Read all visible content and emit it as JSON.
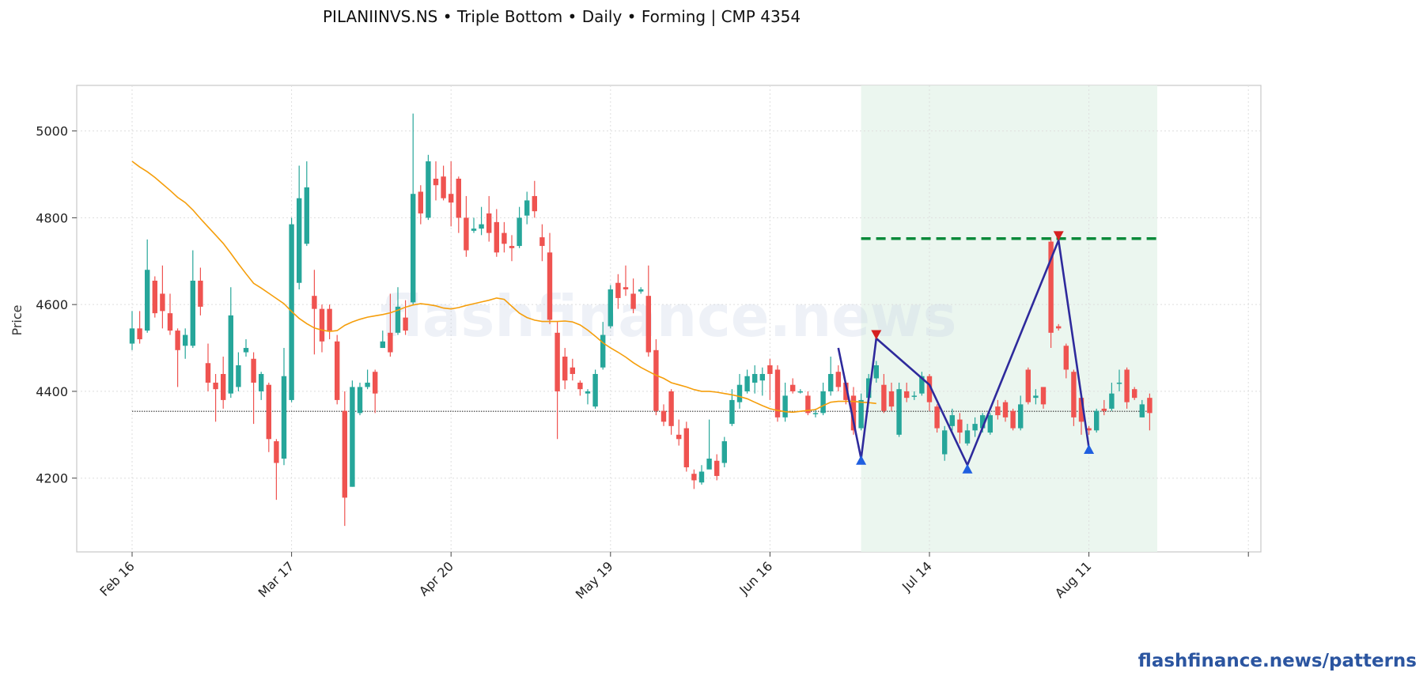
{
  "title": "PILANIINVS.NS  •  Triple Bottom  •  Daily  •  Forming  |  CMP 4354",
  "watermark": "flashfinance.news",
  "footer_link": "flashfinance.news/patterns",
  "colors": {
    "up": "#26a69a",
    "down": "#ef5350",
    "ma": "#f59e0b",
    "pattern": "#2e2a9c",
    "target": "#0a8a3a",
    "zone": "#e8f4ec",
    "trough_marker": "#1f5fe0",
    "peak_marker": "#d62020"
  },
  "chart_data": {
    "type": "candlestick",
    "ylabel": "Price",
    "ylim": [
      4030,
      5105
    ],
    "yticks": [
      4200,
      4400,
      4600,
      4800,
      5000
    ],
    "xticks": [
      {
        "label": "Feb 16",
        "index": 0
      },
      {
        "label": "Mar 17",
        "index": 21
      },
      {
        "label": "Apr 20",
        "index": 42
      },
      {
        "label": "May 19",
        "index": 63
      },
      {
        "label": "Jun 16",
        "index": 84
      },
      {
        "label": "Jul 14",
        "index": 105
      },
      {
        "label": "Aug 11",
        "index": 126
      },
      {
        "label": "",
        "index": 147
      }
    ],
    "candles": [
      [
        4510,
        4545,
        4495,
        4585
      ],
      [
        4545,
        4520,
        4510,
        4585
      ],
      [
        4540,
        4680,
        4535,
        4750
      ],
      [
        4655,
        4580,
        4570,
        4665
      ],
      [
        4625,
        4585,
        4545,
        4690
      ],
      [
        4580,
        4540,
        4530,
        4625
      ],
      [
        4540,
        4495,
        4410,
        4545
      ],
      [
        4505,
        4530,
        4475,
        4545
      ],
      [
        4505,
        4655,
        4500,
        4725
      ],
      [
        4655,
        4595,
        4575,
        4685
      ],
      [
        4465,
        4420,
        4400,
        4510
      ],
      [
        4420,
        4405,
        4330,
        4440
      ],
      [
        4440,
        4380,
        4360,
        4480
      ],
      [
        4395,
        4575,
        4385,
        4640
      ],
      [
        4410,
        4460,
        4400,
        4490
      ],
      [
        4490,
        4500,
        4480,
        4520
      ],
      [
        4475,
        4420,
        4325,
        4490
      ],
      [
        4400,
        4440,
        4380,
        4445
      ],
      [
        4415,
        4290,
        4260,
        4420
      ],
      [
        4285,
        4235,
        4150,
        4290
      ],
      [
        4245,
        4435,
        4230,
        4500
      ],
      [
        4380,
        4785,
        4375,
        4800
      ],
      [
        4650,
        4845,
        4635,
        4920
      ],
      [
        4740,
        4870,
        4735,
        4930
      ],
      [
        4620,
        4590,
        4485,
        4680
      ],
      [
        4590,
        4515,
        4490,
        4600
      ],
      [
        4590,
        4540,
        4520,
        4600
      ],
      [
        4515,
        4380,
        4370,
        4530
      ],
      [
        4355,
        4155,
        4090,
        4400
      ],
      [
        4180,
        4410,
        4180,
        4425
      ],
      [
        4350,
        4410,
        4345,
        4420
      ],
      [
        4410,
        4420,
        4405,
        4450
      ],
      [
        4445,
        4395,
        4350,
        4450
      ],
      [
        4500,
        4515,
        4500,
        4540
      ],
      [
        4535,
        4490,
        4480,
        4625
      ],
      [
        4535,
        4595,
        4530,
        4640
      ],
      [
        4570,
        4540,
        4530,
        4610
      ],
      [
        4605,
        4855,
        4600,
        5040
      ],
      [
        4860,
        4810,
        4785,
        4875
      ],
      [
        4800,
        4930,
        4795,
        4945
      ],
      [
        4890,
        4875,
        4840,
        4930
      ],
      [
        4895,
        4845,
        4840,
        4920
      ],
      [
        4855,
        4835,
        4780,
        4930
      ],
      [
        4890,
        4800,
        4765,
        4895
      ],
      [
        4800,
        4725,
        4710,
        4850
      ],
      [
        4770,
        4775,
        4765,
        4800
      ],
      [
        4775,
        4785,
        4760,
        4825
      ],
      [
        4810,
        4765,
        4745,
        4850
      ],
      [
        4790,
        4720,
        4710,
        4820
      ],
      [
        4765,
        4740,
        4720,
        4790
      ],
      [
        4735,
        4730,
        4700,
        4760
      ],
      [
        4735,
        4800,
        4730,
        4825
      ],
      [
        4805,
        4840,
        4785,
        4860
      ],
      [
        4850,
        4815,
        4800,
        4885
      ],
      [
        4755,
        4735,
        4700,
        4785
      ],
      [
        4720,
        4565,
        4555,
        4765
      ],
      [
        4535,
        4400,
        4290,
        4560
      ],
      [
        4480,
        4425,
        4405,
        4500
      ],
      [
        4455,
        4440,
        4425,
        4475
      ],
      [
        4420,
        4405,
        4390,
        4425
      ],
      [
        4395,
        4400,
        4370,
        4405
      ],
      [
        4365,
        4440,
        4360,
        4450
      ],
      [
        4455,
        4530,
        4450,
        4560
      ],
      [
        4550,
        4635,
        4545,
        4645
      ],
      [
        4650,
        4615,
        4590,
        4670
      ],
      [
        4640,
        4635,
        4620,
        4690
      ],
      [
        4625,
        4590,
        4580,
        4660
      ],
      [
        4630,
        4635,
        4625,
        4640
      ],
      [
        4620,
        4490,
        4480,
        4690
      ],
      [
        4495,
        4355,
        4345,
        4520
      ],
      [
        4355,
        4330,
        4320,
        4370
      ],
      [
        4400,
        4320,
        4300,
        4405
      ],
      [
        4300,
        4290,
        4275,
        4335
      ],
      [
        4315,
        4225,
        4215,
        4330
      ],
      [
        4210,
        4195,
        4175,
        4220
      ],
      [
        4190,
        4215,
        4185,
        4230
      ],
      [
        4220,
        4245,
        4225,
        4335
      ],
      [
        4240,
        4205,
        4195,
        4255
      ],
      [
        4235,
        4285,
        4225,
        4295
      ],
      [
        4325,
        4380,
        4320,
        4405
      ],
      [
        4375,
        4415,
        4360,
        4440
      ],
      [
        4400,
        4435,
        4395,
        4450
      ],
      [
        4420,
        4440,
        4395,
        4460
      ],
      [
        4425,
        4440,
        4390,
        4455
      ],
      [
        4460,
        4440,
        4380,
        4475
      ],
      [
        4450,
        4340,
        4330,
        4460
      ],
      [
        4340,
        4390,
        4330,
        4420
      ],
      [
        4415,
        4400,
        4395,
        4430
      ],
      [
        4400,
        4400,
        4395,
        4405
      ],
      [
        4390,
        4350,
        4345,
        4400
      ],
      [
        4350,
        4350,
        4340,
        4360
      ],
      [
        4350,
        4400,
        4345,
        4420
      ],
      [
        4400,
        4440,
        4390,
        4480
      ],
      [
        4445,
        4410,
        4400,
        4460
      ],
      [
        4420,
        4380,
        4370,
        4420
      ],
      [
        4390,
        4310,
        4300,
        4410
      ],
      [
        4315,
        4380,
        4310,
        4395
      ],
      [
        4385,
        4430,
        4380,
        4440
      ],
      [
        4430,
        4460,
        4420,
        4470
      ],
      [
        4415,
        4355,
        4350,
        4440
      ],
      [
        4400,
        4365,
        4355,
        4420
      ],
      [
        4300,
        4405,
        4295,
        4420
      ],
      [
        4400,
        4385,
        4375,
        4420
      ],
      [
        4390,
        4390,
        4380,
        4400
      ],
      [
        4395,
        4435,
        4390,
        4445
      ],
      [
        4435,
        4375,
        4355,
        4440
      ],
      [
        4365,
        4315,
        4305,
        4370
      ],
      [
        4255,
        4310,
        4240,
        4320
      ],
      [
        4320,
        4345,
        4310,
        4360
      ],
      [
        4335,
        4305,
        4280,
        4350
      ],
      [
        4280,
        4310,
        4275,
        4325
      ],
      [
        4310,
        4325,
        4295,
        4340
      ],
      [
        4315,
        4345,
        4305,
        4350
      ],
      [
        4305,
        4345,
        4300,
        4350
      ],
      [
        4365,
        4345,
        4335,
        4380
      ],
      [
        4375,
        4340,
        4330,
        4380
      ],
      [
        4355,
        4315,
        4310,
        4360
      ],
      [
        4315,
        4370,
        4310,
        4390
      ],
      [
        4450,
        4375,
        4370,
        4455
      ],
      [
        4385,
        4390,
        4370,
        4405
      ],
      [
        4410,
        4370,
        4360,
        4410
      ],
      [
        4745,
        4535,
        4500,
        4755
      ],
      [
        4550,
        4545,
        4540,
        4555
      ],
      [
        4505,
        4450,
        4430,
        4510
      ],
      [
        4445,
        4340,
        4320,
        4450
      ],
      [
        4385,
        4330,
        4300,
        4390
      ],
      [
        4315,
        4310,
        4300,
        4320
      ],
      [
        4310,
        4355,
        4305,
        4360
      ],
      [
        4360,
        4355,
        4345,
        4380
      ],
      [
        4360,
        4395,
        4355,
        4420
      ],
      [
        4420,
        4420,
        4400,
        4450
      ],
      [
        4450,
        4375,
        4360,
        4455
      ],
      [
        4405,
        4385,
        4380,
        4410
      ],
      [
        4340,
        4370,
        4340,
        4380
      ],
      [
        4385,
        4350,
        4310,
        4395
      ]
    ],
    "moving_average": [
      4930,
      4917,
      4906,
      4893,
      4878,
      4863,
      4847,
      4835,
      4818,
      4798,
      4779,
      4760,
      4741,
      4718,
      4694,
      4671,
      4649,
      4638,
      4626,
      4614,
      4602,
      4584,
      4568,
      4556,
      4546,
      4541,
      4538,
      4540,
      4552,
      4560,
      4566,
      4571,
      4574,
      4577,
      4581,
      4587,
      4594,
      4599,
      4602,
      4600,
      4597,
      4592,
      4590,
      4593,
      4598,
      4602,
      4606,
      4610,
      4615,
      4612,
      4596,
      4580,
      4570,
      4564,
      4561,
      4561,
      4561,
      4562,
      4560,
      4553,
      4541,
      4527,
      4512,
      4500,
      4490,
      4479,
      4466,
      4455,
      4446,
      4437,
      4430,
      4420,
      4415,
      4410,
      4404,
      4400,
      4400,
      4398,
      4395,
      4392,
      4388,
      4383,
      4375,
      4367,
      4360,
      4356,
      4353,
      4352,
      4354,
      4356,
      4358,
      4367,
      4375,
      4377,
      4377,
      4377,
      4375,
      4374,
      4372
    ],
    "ma_start_index": 0,
    "current_price": 4354,
    "target_price": 4752,
    "pattern_zone": {
      "start_index": 96,
      "end_index": 135
    },
    "pattern_line": [
      [
        93,
        4500
      ],
      [
        96,
        4245
      ],
      [
        98,
        4522
      ],
      [
        105,
        4415
      ],
      [
        110,
        4230
      ],
      [
        122,
        4748
      ],
      [
        126,
        4270
      ]
    ],
    "troughs": [
      [
        96,
        4240
      ],
      [
        110,
        4220
      ],
      [
        126,
        4265
      ]
    ],
    "peaks": [
      [
        98,
        4532
      ],
      [
        122,
        4760
      ]
    ]
  }
}
